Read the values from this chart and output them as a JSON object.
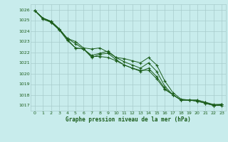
{
  "title": "Graphe pression niveau de la mer (hPa)",
  "bg_color": "#c8ecec",
  "grid_color": "#a8cccc",
  "line_color": "#1a5c1a",
  "marker_color": "#1a5c1a",
  "xlim": [
    -0.5,
    23.5
  ],
  "ylim": [
    1016.5,
    1026.5
  ],
  "xticks": [
    0,
    1,
    2,
    3,
    4,
    5,
    6,
    7,
    8,
    9,
    10,
    11,
    12,
    13,
    14,
    15,
    16,
    17,
    18,
    19,
    20,
    21,
    22,
    23
  ],
  "yticks": [
    1017,
    1018,
    1019,
    1020,
    1021,
    1022,
    1023,
    1024,
    1025,
    1026
  ],
  "series": [
    [
      1025.9,
      1025.1,
      1024.8,
      1024.1,
      1023.3,
      1023.0,
      1022.4,
      1022.3,
      1022.4,
      1022.0,
      1021.5,
      1021.4,
      1021.2,
      1021.0,
      1021.5,
      1020.8,
      1019.3,
      1018.2,
      1017.6,
      1017.5,
      1017.5,
      1017.3,
      1017.0,
      1017.1
    ],
    [
      1025.9,
      1025.2,
      1024.9,
      1024.2,
      1023.3,
      1022.8,
      1022.3,
      1021.7,
      1021.9,
      1022.1,
      1021.5,
      1021.1,
      1020.8,
      1020.5,
      1021.0,
      1020.2,
      1018.8,
      1018.0,
      1017.5,
      1017.5,
      1017.4,
      1017.2,
      1017.0,
      1017.1
    ],
    [
      1025.9,
      1025.2,
      1024.9,
      1024.2,
      1023.2,
      1022.4,
      1022.3,
      1021.5,
      1021.8,
      1021.9,
      1021.3,
      1020.8,
      1020.5,
      1020.2,
      1020.5,
      1019.7,
      1018.6,
      1018.0,
      1017.5,
      1017.5,
      1017.5,
      1017.3,
      1017.1,
      1017.1
    ],
    [
      1025.9,
      1025.2,
      1024.8,
      1024.1,
      1023.1,
      1022.4,
      1022.3,
      1021.6,
      1021.6,
      1021.5,
      1021.2,
      1020.8,
      1020.5,
      1020.3,
      1020.3,
      1019.5,
      1018.5,
      1018.0,
      1017.5,
      1017.5,
      1017.4,
      1017.2,
      1017.0,
      1017.0
    ]
  ]
}
